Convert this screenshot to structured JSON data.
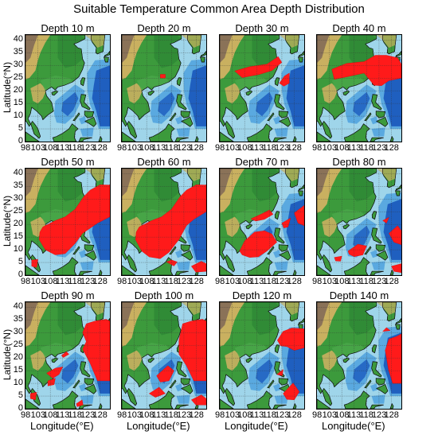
{
  "title": "Suitable Temperature Common Area Depth Distribution",
  "y_axis_label": "Latitude(°N)",
  "x_axis_label": "Longitude(°E)",
  "x_ticks": [
    "98",
    "103",
    "108",
    "113",
    "118",
    "123",
    "128"
  ],
  "y_ticks": [
    "0",
    "5",
    "10",
    "15",
    "20",
    "25",
    "30",
    "35",
    "40"
  ],
  "map_extent": {
    "lon_min": 98,
    "lon_max": 132,
    "lat_min": 0,
    "lat_max": 42
  },
  "colors": {
    "ocean_shallow": "#9fd5ea",
    "ocean_mid": "#5aa9e0",
    "ocean_deep": "#1f5fbf",
    "land_low": "#3c9a3c",
    "land_mid": "#c9b060",
    "land_high": "#8a7258",
    "suitable_area": "#ff1a1a",
    "grid": "#333333"
  },
  "panels": [
    {
      "title": "Depth 10 m",
      "suitable_coverage": 0.0
    },
    {
      "title": "Depth 20 m",
      "suitable_coverage": 0.01
    },
    {
      "title": "Depth 30 m",
      "suitable_coverage": 0.06
    },
    {
      "title": "Depth 40 m",
      "suitable_coverage": 0.12
    },
    {
      "title": "Depth 50 m",
      "suitable_coverage": 0.4
    },
    {
      "title": "Depth 60 m",
      "suitable_coverage": 0.42
    },
    {
      "title": "Depth 70 m",
      "suitable_coverage": 0.33
    },
    {
      "title": "Depth 80 m",
      "suitable_coverage": 0.22
    },
    {
      "title": "Depth 90 m",
      "suitable_coverage": 0.3
    },
    {
      "title": "Depth 100 m",
      "suitable_coverage": 0.34
    },
    {
      "title": "Depth 120 m",
      "suitable_coverage": 0.2
    },
    {
      "title": "Depth 140 m",
      "suitable_coverage": 0.15
    }
  ]
}
